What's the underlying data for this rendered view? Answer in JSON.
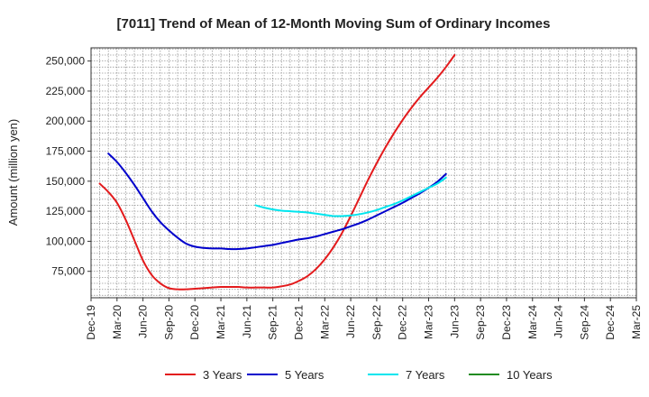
{
  "chart_data": {
    "type": "line",
    "title": "[7011]  Trend of Mean of 12-Month Moving Sum of Ordinary Incomes",
    "xlabel": "",
    "ylabel": "Amount (million yen)",
    "x_ticks": [
      "Dec-19",
      "Mar-20",
      "Jun-20",
      "Sep-20",
      "Dec-20",
      "Mar-21",
      "Jun-21",
      "Sep-21",
      "Dec-21",
      "Mar-22",
      "Jun-22",
      "Sep-22",
      "Dec-22",
      "Mar-23",
      "Jun-23",
      "Sep-23",
      "Dec-23",
      "Mar-24",
      "Jun-24",
      "Sep-24",
      "Dec-24",
      "Mar-25"
    ],
    "y_ticks": [
      75000,
      100000,
      125000,
      150000,
      175000,
      200000,
      225000,
      250000
    ],
    "y_tick_labels": [
      "75,000",
      "100,000",
      "125,000",
      "150,000",
      "175,000",
      "200,000",
      "225,000",
      "250,000"
    ],
    "ylim": [
      53000,
      261000
    ],
    "grid": true,
    "legend_position": "bottom",
    "series": [
      {
        "name": "3 Years",
        "color": "#e31a1c",
        "points": [
          [
            0,
            148000
          ],
          [
            1,
            141000
          ],
          [
            2,
            132000
          ],
          [
            3,
            118000
          ],
          [
            4,
            101000
          ],
          [
            5,
            84000
          ],
          [
            6,
            72000
          ],
          [
            7,
            65000
          ],
          [
            8,
            61000
          ],
          [
            9,
            60000
          ],
          [
            10,
            60000
          ],
          [
            11,
            60500
          ],
          [
            12,
            61000
          ],
          [
            13,
            61500
          ],
          [
            14,
            62000
          ],
          [
            15,
            62000
          ],
          [
            16,
            62000
          ],
          [
            17,
            61500
          ],
          [
            18,
            61500
          ],
          [
            19,
            61500
          ],
          [
            20,
            61500
          ],
          [
            21,
            62500
          ],
          [
            22,
            64000
          ],
          [
            23,
            67000
          ],
          [
            24,
            71000
          ],
          [
            25,
            77000
          ],
          [
            26,
            85000
          ],
          [
            27,
            95000
          ],
          [
            28,
            107000
          ],
          [
            29,
            121000
          ],
          [
            30,
            136000
          ],
          [
            31,
            151000
          ],
          [
            32,
            165000
          ],
          [
            33,
            178000
          ],
          [
            34,
            190000
          ],
          [
            35,
            201000
          ],
          [
            36,
            211000
          ],
          [
            37,
            220000
          ],
          [
            38,
            228000
          ],
          [
            39,
            236000
          ],
          [
            40,
            245000
          ],
          [
            41,
            255000
          ]
        ]
      },
      {
        "name": "5 Years",
        "color": "#0000cc",
        "points": [
          [
            1,
            173000
          ],
          [
            2,
            166000
          ],
          [
            3,
            157000
          ],
          [
            4,
            147000
          ],
          [
            5,
            136000
          ],
          [
            6,
            125000
          ],
          [
            7,
            116000
          ],
          [
            8,
            109000
          ],
          [
            9,
            103000
          ],
          [
            10,
            98000
          ],
          [
            11,
            95500
          ],
          [
            12,
            94500
          ],
          [
            13,
            94000
          ],
          [
            14,
            94000
          ],
          [
            15,
            93500
          ],
          [
            16,
            93500
          ],
          [
            17,
            94000
          ],
          [
            18,
            95000
          ],
          [
            19,
            96000
          ],
          [
            20,
            97000
          ],
          [
            21,
            98500
          ],
          [
            22,
            100000
          ],
          [
            23,
            101500
          ],
          [
            24,
            102500
          ],
          [
            25,
            104000
          ],
          [
            26,
            106000
          ],
          [
            27,
            108000
          ],
          [
            28,
            110000
          ],
          [
            29,
            112500
          ],
          [
            30,
            115000
          ],
          [
            31,
            118000
          ],
          [
            32,
            121500
          ],
          [
            33,
            125000
          ],
          [
            34,
            128500
          ],
          [
            35,
            132000
          ],
          [
            36,
            136000
          ],
          [
            37,
            140000
          ],
          [
            38,
            144500
          ],
          [
            39,
            149500
          ],
          [
            40,
            156000
          ]
        ]
      },
      {
        "name": "7 Years",
        "color": "#00e5ee",
        "points": [
          [
            18,
            130000
          ],
          [
            19,
            128000
          ],
          [
            20,
            126500
          ],
          [
            21,
            125500
          ],
          [
            22,
            125000
          ],
          [
            23,
            124500
          ],
          [
            24,
            124000
          ],
          [
            25,
            123000
          ],
          [
            26,
            122000
          ],
          [
            27,
            121000
          ],
          [
            28,
            121000
          ],
          [
            29,
            121500
          ],
          [
            30,
            122500
          ],
          [
            31,
            124000
          ],
          [
            32,
            126000
          ],
          [
            33,
            128500
          ],
          [
            34,
            131000
          ],
          [
            35,
            134000
          ],
          [
            36,
            137500
          ],
          [
            37,
            141000
          ],
          [
            38,
            144500
          ],
          [
            39,
            148000
          ],
          [
            40,
            153000
          ]
        ]
      },
      {
        "name": "10 Years",
        "color": "#228b22",
        "points": []
      }
    ]
  }
}
